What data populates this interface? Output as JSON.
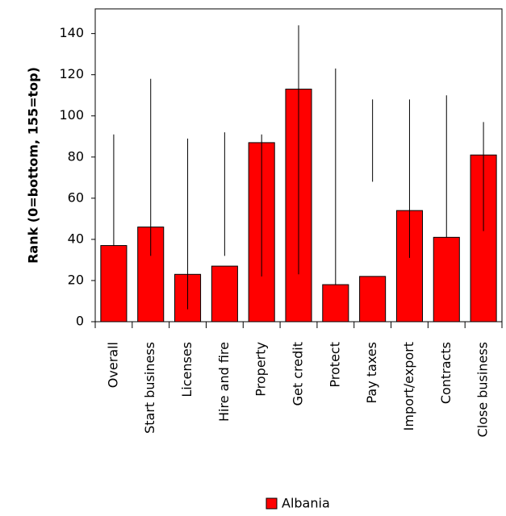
{
  "chart_data": {
    "type": "bar",
    "y_label": "Rank (0=bottom, 155=top)",
    "categories": [
      "Overall",
      "Start business",
      "Licenses",
      "Hire and fire",
      "Property",
      "Get credit",
      "Protect",
      "Pay taxes",
      "Import/export",
      "Contracts",
      "Close business"
    ],
    "series": [
      {
        "name": "Albania",
        "color": "#ff0000",
        "values": [
          37,
          46,
          23,
          27,
          87,
          113,
          18,
          22,
          54,
          41,
          81
        ]
      }
    ],
    "low": [
      37,
      32,
      6,
      32,
      22,
      23,
      18,
      68,
      31,
      41,
      44
    ],
    "high": [
      91,
      118,
      89,
      92,
      91,
      144,
      123,
      108,
      108,
      110,
      97
    ],
    "ylim": [
      0,
      152
    ],
    "yticks": [
      0,
      20,
      40,
      60,
      80,
      100,
      120,
      140
    ]
  }
}
